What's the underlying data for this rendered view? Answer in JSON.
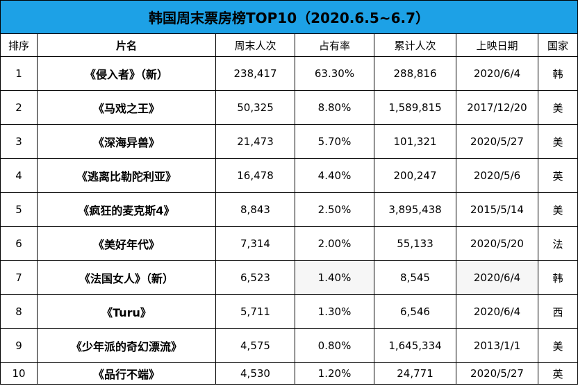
{
  "title": "韩国周末票房榜TOP10（2020.6.5~6.7）",
  "columns": [
    "排序",
    "片名",
    "周末人次",
    "占有率",
    "累计人次",
    "上映日期",
    "国家"
  ],
  "rows": [
    {
      "rank": "1",
      "film": "《侵入者》（新）",
      "weekend": "238,417",
      "share": "63.30%",
      "total": "288,816",
      "date": "2020/6/4",
      "country": "韩"
    },
    {
      "rank": "2",
      "film": "《马戏之王》",
      "weekend": "50,325",
      "share": "8.80%",
      "total": "1,589,815",
      "date": "2017/12/20",
      "country": "美"
    },
    {
      "rank": "3",
      "film": "《深海异兽》",
      "weekend": "21,473",
      "share": "5.70%",
      "total": "101,321",
      "date": "2020/5/27",
      "country": "美"
    },
    {
      "rank": "4",
      "film": "《逃离比勒陀利亚》",
      "weekend": "16,478",
      "share": "4.40%",
      "total": "200,247",
      "date": "2020/5/6",
      "country": "英"
    },
    {
      "rank": "5",
      "film": "《疯狂的麦克斯4》",
      "weekend": "8,843",
      "share": "2.50%",
      "total": "3,895,438",
      "date": "2015/5/14",
      "country": "美"
    },
    {
      "rank": "6",
      "film": "《美好年代》",
      "weekend": "7,314",
      "share": "2.00%",
      "total": "55,133",
      "date": "2020/5/20",
      "country": "法"
    },
    {
      "rank": "7",
      "film": "《法国女人》（新）",
      "weekend": "6,523",
      "share": "1.40%",
      "total": "8,545",
      "date": "2020/6/4",
      "country": "韩"
    },
    {
      "rank": "8",
      "film": "《Turu》",
      "weekend": "5,711",
      "share": "1.30%",
      "total": "6,546",
      "date": "2020/6/4",
      "country": "西"
    },
    {
      "rank": "9",
      "film": "《少年派的奇幻漂流》",
      "weekend": "4,575",
      "share": "0.80%",
      "total": "1,645,334",
      "date": "2013/1/1",
      "country": "美"
    },
    {
      "rank": "10",
      "film": "《品行不端》",
      "weekend": "4,530",
      "share": "1.20%",
      "total": "24,771",
      "date": "2020/5/27",
      "country": "英"
    }
  ],
  "colors": {
    "title_bg": "#1da1e6",
    "border": "#000000",
    "shaded_cell": "#f6f6f6"
  }
}
